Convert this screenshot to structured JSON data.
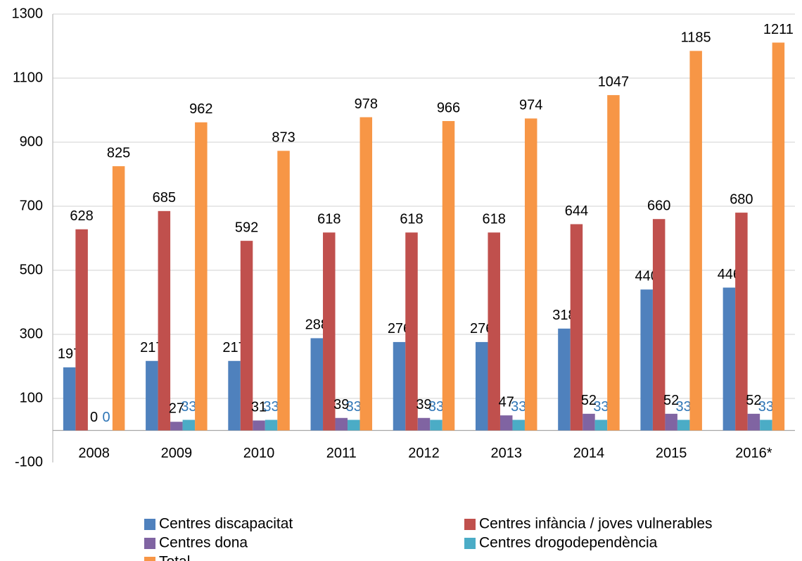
{
  "chart_data": {
    "type": "bar",
    "categories": [
      "2008",
      "2009",
      "2010",
      "2011",
      "2012",
      "2013",
      "2014",
      "2015",
      "2016*"
    ],
    "series": [
      {
        "name": "Centres discapacitat",
        "color": "#4f81bd",
        "label_color": "#000000",
        "values": [
          197,
          217,
          217,
          288,
          276,
          276,
          318,
          440,
          446
        ]
      },
      {
        "name": "Centres infància / joves vulnerables",
        "color": "#c0504d",
        "label_color": "#000000",
        "values": [
          628,
          685,
          592,
          618,
          618,
          618,
          644,
          660,
          680
        ]
      },
      {
        "name": "Centres dona",
        "color": "#8064a2",
        "label_color": "#000000",
        "values": [
          0,
          27,
          31,
          39,
          39,
          47,
          52,
          52,
          52
        ]
      },
      {
        "name": "Centres drogodependència",
        "color": "#4bacc6",
        "label_color": "#2e75b6",
        "values": [
          0,
          33,
          33,
          33,
          33,
          33,
          33,
          33,
          33
        ]
      },
      {
        "name": "Total",
        "color": "#f79646",
        "label_color": "#000000",
        "values": [
          825,
          962,
          873,
          978,
          966,
          974,
          1047,
          1185,
          1211
        ]
      }
    ],
    "ylim": [
      -100,
      1300
    ],
    "yticks": [
      -100,
      100,
      300,
      500,
      700,
      900,
      1100,
      1300
    ],
    "grid": true,
    "legend": "bottom"
  }
}
